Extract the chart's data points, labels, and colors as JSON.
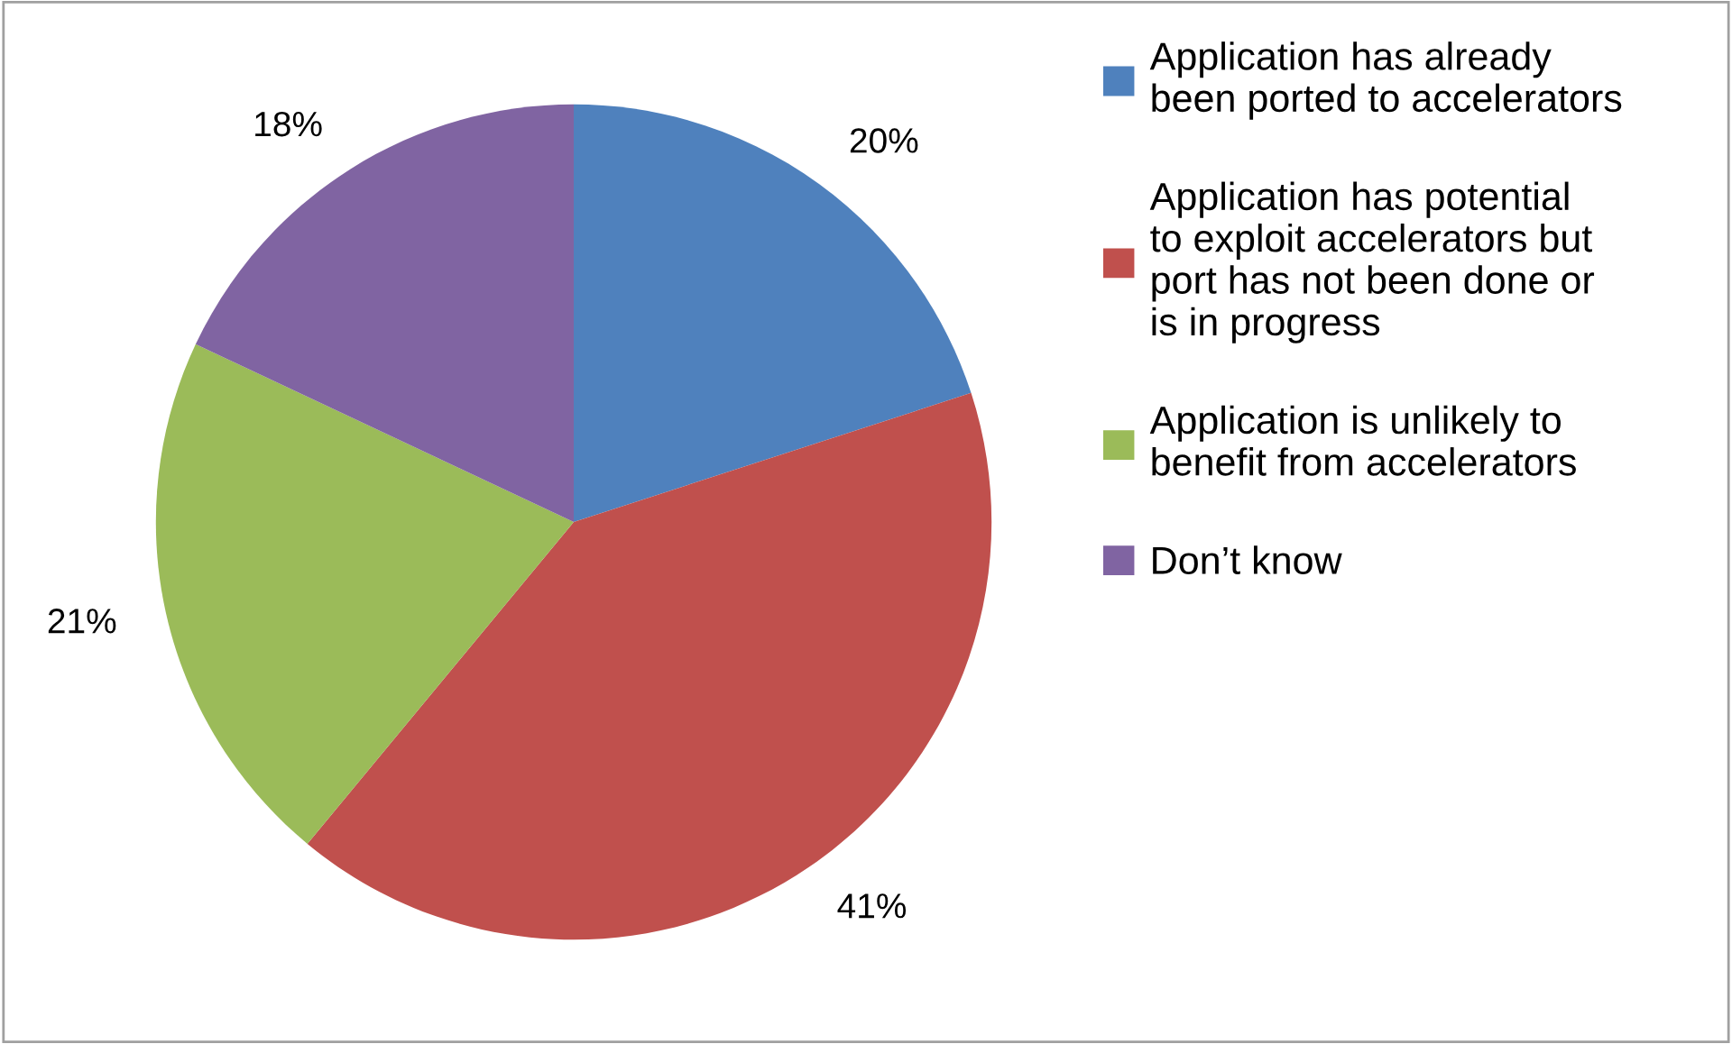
{
  "chart_data": {
    "type": "pie",
    "categories": [
      "Application has already been ported to accelerators",
      "Application has potential to exploit accelerators but port has not been done or is in progress",
      "Application is unlikely to benefit from accelerators",
      "Don’t know"
    ],
    "values": [
      20,
      41,
      21,
      18
    ],
    "colors": [
      "#4f81bd",
      "#c0504d",
      "#9bbb59",
      "#8064a2"
    ],
    "value_labels": [
      "20%",
      "41%",
      "21%",
      "18%"
    ],
    "legend": "right"
  }
}
